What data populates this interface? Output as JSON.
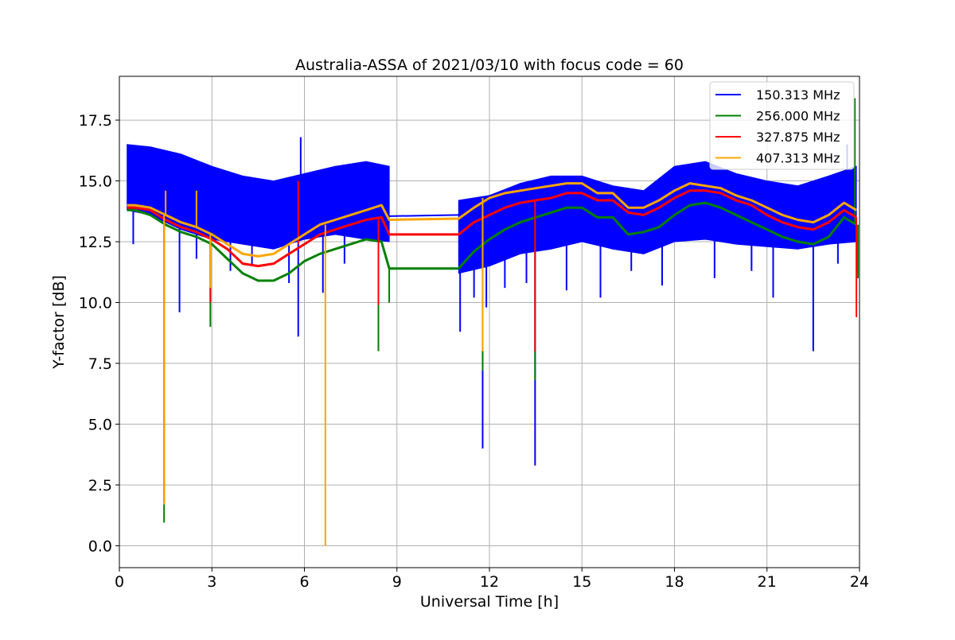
{
  "chart_data": {
    "type": "line",
    "title": "Australia-ASSA of 2021/03/10 with focus code = 60",
    "xlabel": "Universal Time [h]",
    "ylabel": "Y-factor [dB]",
    "xlim": [
      0,
      24
    ],
    "ylim": [
      -0.9,
      19.3
    ],
    "xticks": [
      "0",
      "3",
      "6",
      "9",
      "12",
      "15",
      "18",
      "21",
      "24"
    ],
    "yticks": [
      "0.0",
      "2.5",
      "5.0",
      "7.5",
      "10.0",
      "12.5",
      "15.0",
      "17.5"
    ],
    "grid": true,
    "legend_position": "top-right",
    "series": [
      {
        "name": "150.313 MHz",
        "color": "#0000ff",
        "band": true,
        "upper": [
          [
            0.25,
            16.5
          ],
          [
            1,
            16.4
          ],
          [
            2,
            16.1
          ],
          [
            3,
            15.6
          ],
          [
            4,
            15.2
          ],
          [
            5,
            15.0
          ],
          [
            6,
            15.3
          ],
          [
            7,
            15.6
          ],
          [
            8,
            15.8
          ],
          [
            8.75,
            15.6
          ],
          [
            11.0,
            14.2
          ],
          [
            12,
            14.4
          ],
          [
            13,
            14.9
          ],
          [
            14,
            15.2
          ],
          [
            15,
            15.2
          ],
          [
            16,
            14.8
          ],
          [
            17,
            14.6
          ],
          [
            18,
            15.6
          ],
          [
            19,
            15.8
          ],
          [
            20,
            15.3
          ],
          [
            21,
            15.0
          ],
          [
            22,
            14.8
          ],
          [
            23,
            15.2
          ],
          [
            23.9,
            15.6
          ]
        ],
        "lower": [
          [
            0.25,
            13.8
          ],
          [
            1,
            13.6
          ],
          [
            2,
            13.0
          ],
          [
            3,
            12.6
          ],
          [
            4,
            12.4
          ],
          [
            5,
            12.2
          ],
          [
            6,
            12.6
          ],
          [
            7,
            12.8
          ],
          [
            8,
            12.6
          ],
          [
            8.75,
            12.5
          ],
          [
            11.0,
            11.2
          ],
          [
            12,
            11.5
          ],
          [
            13,
            12.0
          ],
          [
            14,
            12.2
          ],
          [
            15,
            12.5
          ],
          [
            16,
            12.2
          ],
          [
            17,
            12.0
          ],
          [
            18,
            12.5
          ],
          [
            19,
            12.6
          ],
          [
            20,
            12.4
          ],
          [
            21,
            12.3
          ],
          [
            22,
            12.2
          ],
          [
            23,
            12.4
          ],
          [
            23.9,
            12.5
          ]
        ],
        "gap": [
          [
            8.75,
            13.55
          ],
          [
            11.0,
            13.6
          ]
        ],
        "spikes": [
          [
            0.45,
            12.4
          ],
          [
            1.95,
            9.6
          ],
          [
            2.5,
            11.8
          ],
          [
            3.6,
            11.3
          ],
          [
            4.3,
            11.5
          ],
          [
            5.5,
            10.8
          ],
          [
            5.8,
            8.6
          ],
          [
            5.88,
            16.8
          ],
          [
            6.6,
            10.4
          ],
          [
            7.3,
            11.6
          ],
          [
            11.05,
            8.8
          ],
          [
            11.5,
            10.2
          ],
          [
            11.78,
            4.0
          ],
          [
            11.9,
            9.8
          ],
          [
            12.5,
            10.6
          ],
          [
            13.2,
            10.8
          ],
          [
            13.48,
            3.3
          ],
          [
            14.5,
            10.5
          ],
          [
            15.6,
            10.2
          ],
          [
            16.6,
            11.3
          ],
          [
            17.6,
            10.7
          ],
          [
            19.3,
            11.0
          ],
          [
            20.5,
            11.3
          ],
          [
            21.2,
            10.2
          ],
          [
            22.5,
            8.0
          ],
          [
            23.3,
            11.6
          ],
          [
            23.6,
            16.5
          ]
        ]
      },
      {
        "name": "256.000 MHz",
        "color": "#008000",
        "band": false,
        "points": [
          [
            0.25,
            13.8
          ],
          [
            0.5,
            13.8
          ],
          [
            1,
            13.6
          ],
          [
            1.5,
            13.2
          ],
          [
            2,
            12.9
          ],
          [
            2.5,
            12.7
          ],
          [
            3,
            12.4
          ],
          [
            3.5,
            11.8
          ],
          [
            4,
            11.2
          ],
          [
            4.5,
            10.9
          ],
          [
            5,
            10.9
          ],
          [
            5.5,
            11.2
          ],
          [
            6,
            11.7
          ],
          [
            6.5,
            12.0
          ],
          [
            7,
            12.2
          ],
          [
            7.5,
            12.4
          ],
          [
            8,
            12.6
          ],
          [
            8.5,
            12.5
          ],
          [
            8.75,
            11.4
          ],
          [
            11.0,
            11.4
          ],
          [
            11.5,
            12.1
          ],
          [
            12,
            12.6
          ],
          [
            12.5,
            13.0
          ],
          [
            13,
            13.3
          ],
          [
            13.5,
            13.5
          ],
          [
            14,
            13.7
          ],
          [
            14.5,
            13.9
          ],
          [
            15,
            13.9
          ],
          [
            15.5,
            13.5
          ],
          [
            16,
            13.5
          ],
          [
            16.5,
            12.8
          ],
          [
            17,
            12.9
          ],
          [
            17.5,
            13.1
          ],
          [
            18,
            13.6
          ],
          [
            18.5,
            14.0
          ],
          [
            19,
            14.1
          ],
          [
            19.5,
            13.9
          ],
          [
            20,
            13.6
          ],
          [
            20.5,
            13.3
          ],
          [
            21,
            13.0
          ],
          [
            21.5,
            12.7
          ],
          [
            22,
            12.5
          ],
          [
            22.5,
            12.4
          ],
          [
            23,
            12.7
          ],
          [
            23.5,
            13.5
          ],
          [
            23.9,
            13.2
          ]
        ],
        "spikes": [
          [
            1.45,
            0.95
          ],
          [
            2.95,
            9.0
          ],
          [
            8.4,
            8.0
          ],
          [
            8.75,
            10.0
          ],
          [
            11.78,
            7.2
          ],
          [
            13.48,
            6.8
          ],
          [
            23.85,
            18.4
          ],
          [
            23.95,
            11.0
          ]
        ]
      },
      {
        "name": "327.875 MHz",
        "color": "#ff0000",
        "band": false,
        "points": [
          [
            0.25,
            13.9
          ],
          [
            0.5,
            13.9
          ],
          [
            1,
            13.8
          ],
          [
            1.5,
            13.4
          ],
          [
            2,
            13.1
          ],
          [
            2.5,
            12.9
          ],
          [
            3,
            12.6
          ],
          [
            3.5,
            12.2
          ],
          [
            4,
            11.6
          ],
          [
            4.5,
            11.5
          ],
          [
            5,
            11.6
          ],
          [
            5.5,
            12.0
          ],
          [
            6,
            12.4
          ],
          [
            6.5,
            12.8
          ],
          [
            7,
            13.0
          ],
          [
            7.5,
            13.2
          ],
          [
            8,
            13.4
          ],
          [
            8.5,
            13.5
          ],
          [
            8.75,
            12.8
          ],
          [
            11.0,
            12.8
          ],
          [
            11.5,
            13.3
          ],
          [
            12,
            13.6
          ],
          [
            12.5,
            13.9
          ],
          [
            13,
            14.1
          ],
          [
            13.5,
            14.2
          ],
          [
            14,
            14.3
          ],
          [
            14.5,
            14.5
          ],
          [
            15,
            14.5
          ],
          [
            15.5,
            14.2
          ],
          [
            16,
            14.2
          ],
          [
            16.5,
            13.7
          ],
          [
            17,
            13.6
          ],
          [
            17.5,
            13.9
          ],
          [
            18,
            14.3
          ],
          [
            18.5,
            14.6
          ],
          [
            19,
            14.6
          ],
          [
            19.5,
            14.5
          ],
          [
            20,
            14.2
          ],
          [
            20.5,
            14.0
          ],
          [
            21,
            13.6
          ],
          [
            21.5,
            13.3
          ],
          [
            22,
            13.1
          ],
          [
            22.5,
            13.0
          ],
          [
            23,
            13.3
          ],
          [
            23.5,
            13.8
          ],
          [
            23.9,
            13.5
          ]
        ],
        "spikes": [
          [
            1.45,
            1.8
          ],
          [
            2.95,
            10.0
          ],
          [
            5.8,
            15.0
          ],
          [
            8.4,
            9.9
          ],
          [
            11.78,
            8.2
          ],
          [
            13.48,
            8.0
          ],
          [
            23.9,
            9.4
          ]
        ]
      },
      {
        "name": "407.313 MHz",
        "color": "#ffa500",
        "band": false,
        "points": [
          [
            0.25,
            14.0
          ],
          [
            0.5,
            14.0
          ],
          [
            1,
            13.9
          ],
          [
            1.5,
            13.6
          ],
          [
            2,
            13.3
          ],
          [
            2.5,
            13.1
          ],
          [
            3,
            12.8
          ],
          [
            3.5,
            12.4
          ],
          [
            4,
            12.0
          ],
          [
            4.5,
            11.9
          ],
          [
            5,
            12.0
          ],
          [
            5.5,
            12.4
          ],
          [
            6,
            12.8
          ],
          [
            6.5,
            13.2
          ],
          [
            7,
            13.4
          ],
          [
            7.5,
            13.6
          ],
          [
            8,
            13.8
          ],
          [
            8.5,
            14.0
          ],
          [
            8.75,
            13.4
          ],
          [
            11.0,
            13.45
          ],
          [
            11.5,
            13.9
          ],
          [
            12,
            14.3
          ],
          [
            12.5,
            14.5
          ],
          [
            13,
            14.6
          ],
          [
            13.5,
            14.7
          ],
          [
            14,
            14.8
          ],
          [
            14.5,
            14.9
          ],
          [
            15,
            14.9
          ],
          [
            15.5,
            14.5
          ],
          [
            16,
            14.5
          ],
          [
            16.5,
            13.9
          ],
          [
            17,
            13.9
          ],
          [
            17.5,
            14.2
          ],
          [
            18,
            14.6
          ],
          [
            18.5,
            14.9
          ],
          [
            19,
            14.8
          ],
          [
            19.5,
            14.7
          ],
          [
            20,
            14.4
          ],
          [
            20.5,
            14.2
          ],
          [
            21,
            13.9
          ],
          [
            21.5,
            13.6
          ],
          [
            22,
            13.4
          ],
          [
            22.5,
            13.3
          ],
          [
            23,
            13.6
          ],
          [
            23.5,
            14.1
          ],
          [
            23.9,
            13.8
          ]
        ],
        "spikes": [
          [
            1.45,
            1.7
          ],
          [
            1.5,
            14.6
          ],
          [
            2.5,
            14.6
          ],
          [
            2.95,
            10.6
          ],
          [
            6.68,
            0.0
          ],
          [
            11.78,
            8.0
          ]
        ]
      }
    ]
  }
}
